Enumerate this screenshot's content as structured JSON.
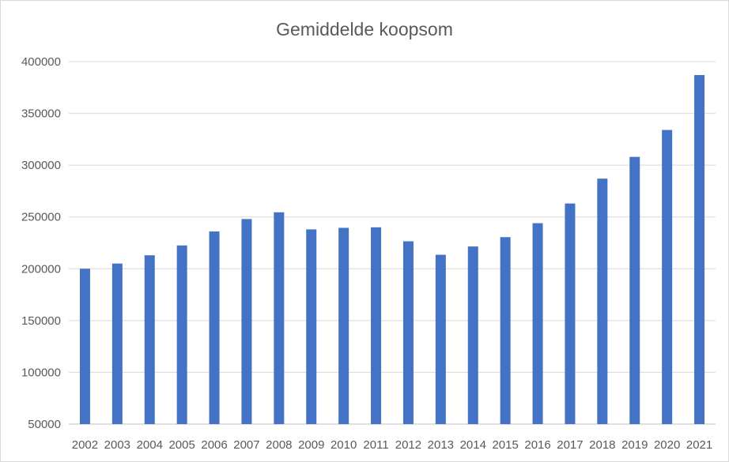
{
  "chart_data": {
    "type": "bar",
    "title": "Gemiddelde koopsom",
    "xlabel": "",
    "ylabel": "",
    "categories": [
      "2002",
      "2003",
      "2004",
      "2005",
      "2006",
      "2007",
      "2008",
      "2009",
      "2010",
      "2011",
      "2012",
      "2013",
      "2014",
      "2015",
      "2016",
      "2017",
      "2018",
      "2019",
      "2020",
      "2021"
    ],
    "values": [
      200000,
      205000,
      213000,
      222500,
      236000,
      248000,
      254500,
      238000,
      239500,
      240000,
      226500,
      213500,
      221500,
      230500,
      244000,
      263000,
      287000,
      308000,
      334000,
      387000
    ],
    "ylim": [
      50000,
      400000
    ],
    "yticks": [
      "400000",
      "350000",
      "300000",
      "250000",
      "200000",
      "150000",
      "100000",
      "50000"
    ],
    "grid": true,
    "legend": "none",
    "bar_color": "#4472c4"
  }
}
